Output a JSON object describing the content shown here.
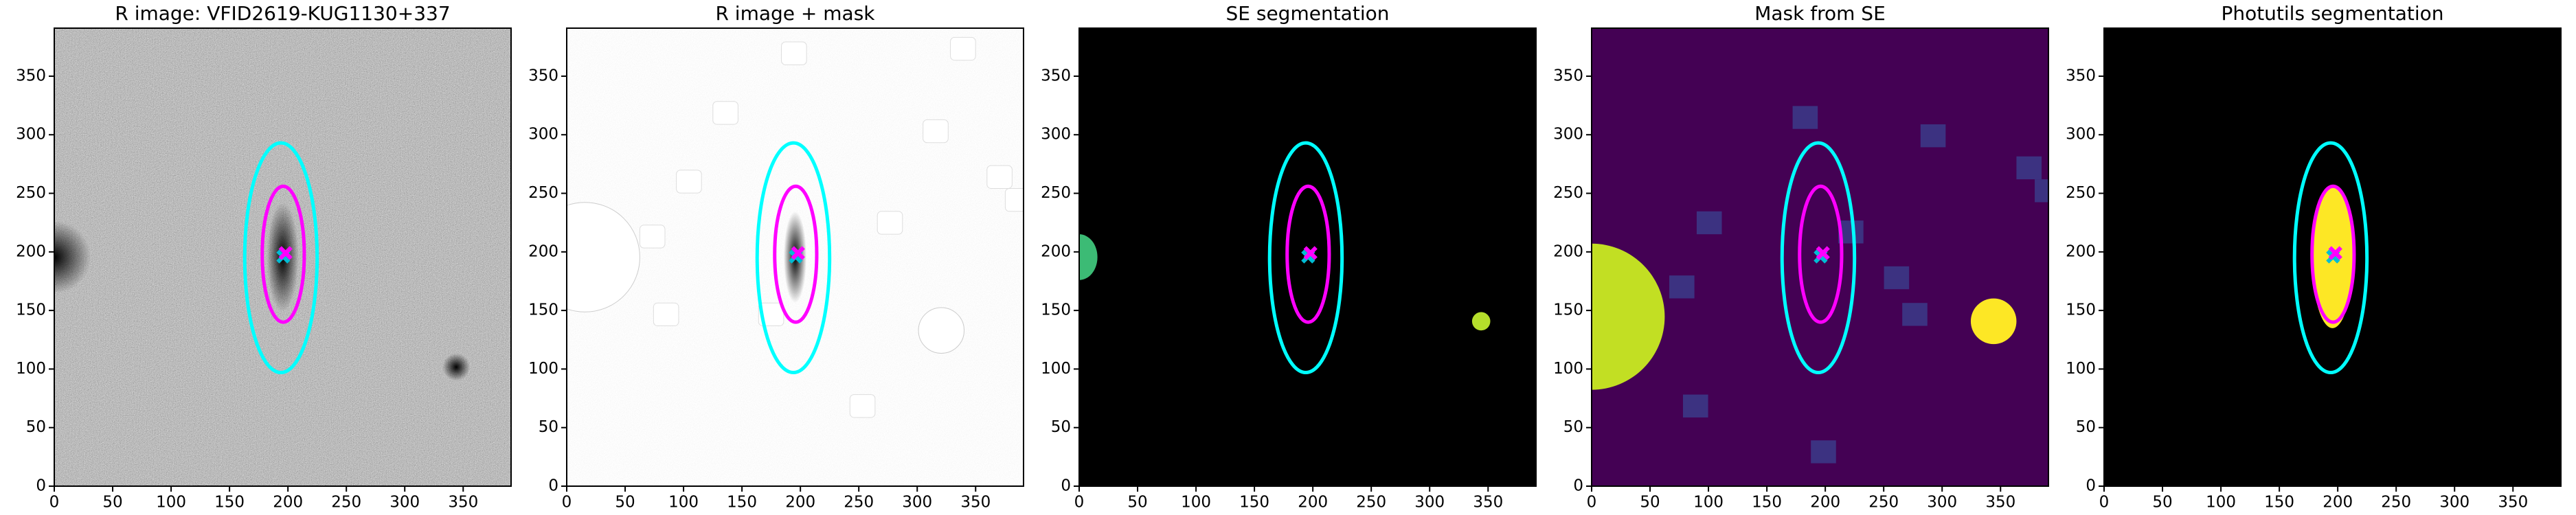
{
  "chart_data": [
    {
      "type": "image",
      "title": "R image: VFID2619-KUG1130+337",
      "background": "#5a5a5a",
      "xlim": [
        0,
        391
      ],
      "ylim": [
        0,
        391
      ],
      "xticks": [
        0,
        50,
        100,
        150,
        200,
        250,
        300,
        350
      ],
      "yticks": [
        0,
        50,
        100,
        150,
        200,
        250,
        300,
        350
      ],
      "ellipses": [
        {
          "x": 194,
          "y": 195,
          "rx": 31,
          "ry": 98,
          "color": "#00ffff"
        },
        {
          "x": 196,
          "y": 198,
          "rx": 18,
          "ry": 58,
          "color": "#ff00ff"
        }
      ],
      "markers": [
        {
          "x": 196,
          "y": 196,
          "color": "#00bcd4"
        },
        {
          "x": 198,
          "y": 199,
          "color": "#ff00ff"
        }
      ]
    },
    {
      "type": "image",
      "title": "R image + mask",
      "background": "#e8e8e8",
      "xlim": [
        0,
        391
      ],
      "ylim": [
        0,
        391
      ],
      "xticks": [
        0,
        50,
        100,
        150,
        200,
        250,
        300,
        350
      ],
      "yticks": [
        0,
        50,
        100,
        150,
        200,
        250,
        300,
        350
      ],
      "ellipses": [
        {
          "x": 194,
          "y": 195,
          "rx": 31,
          "ry": 98,
          "color": "#00ffff"
        },
        {
          "x": 196,
          "y": 198,
          "rx": 18,
          "ry": 58,
          "color": "#ff00ff"
        }
      ],
      "markers": [
        {
          "x": 196,
          "y": 196,
          "color": "#00bcd4"
        },
        {
          "x": 198,
          "y": 199,
          "color": "#ff00ff"
        }
      ]
    },
    {
      "type": "image",
      "title": "SE segmentation",
      "background": "#000000",
      "xlim": [
        0,
        391
      ],
      "ylim": [
        0,
        391
      ],
      "xticks": [
        0,
        50,
        100,
        150,
        200,
        250,
        300,
        350
      ],
      "yticks": [
        0,
        50,
        100,
        150,
        200,
        250,
        300,
        350
      ],
      "ellipses": [
        {
          "x": 194,
          "y": 195,
          "rx": 31,
          "ry": 98,
          "color": "#00ffff"
        },
        {
          "x": 196,
          "y": 198,
          "rx": 18,
          "ry": 58,
          "color": "#ff00ff"
        }
      ],
      "markers": [
        {
          "x": 196,
          "y": 196,
          "color": "#00bcd4"
        },
        {
          "x": 198,
          "y": 199,
          "color": "#ff00ff"
        }
      ]
    },
    {
      "type": "image",
      "title": "Mask from SE",
      "background": "#440154",
      "xlim": [
        0,
        391
      ],
      "ylim": [
        0,
        391
      ],
      "xticks": [
        0,
        50,
        100,
        150,
        200,
        250,
        300,
        350
      ],
      "yticks": [
        0,
        50,
        100,
        150,
        200,
        250,
        300,
        350
      ],
      "ellipses": [
        {
          "x": 194,
          "y": 195,
          "rx": 31,
          "ry": 98,
          "color": "#00ffff"
        },
        {
          "x": 196,
          "y": 198,
          "rx": 18,
          "ry": 58,
          "color": "#ff00ff"
        }
      ],
      "markers": [
        {
          "x": 196,
          "y": 196,
          "color": "#00bcd4"
        },
        {
          "x": 198,
          "y": 199,
          "color": "#ff00ff"
        }
      ]
    },
    {
      "type": "image",
      "title": "Photutils segmentation",
      "background": "#000000",
      "xlim": [
        0,
        391
      ],
      "ylim": [
        0,
        391
      ],
      "xticks": [
        0,
        50,
        100,
        150,
        200,
        250,
        300,
        350
      ],
      "yticks": [
        0,
        50,
        100,
        150,
        200,
        250,
        300,
        350
      ],
      "ellipses": [
        {
          "x": 194,
          "y": 195,
          "rx": 31,
          "ry": 98,
          "color": "#00ffff"
        },
        {
          "x": 196,
          "y": 198,
          "rx": 18,
          "ry": 58,
          "color": "#ff00ff"
        }
      ],
      "markers": [
        {
          "x": 196,
          "y": 196,
          "color": "#00bcd4"
        },
        {
          "x": 198,
          "y": 199,
          "color": "#ff00ff"
        }
      ]
    }
  ]
}
